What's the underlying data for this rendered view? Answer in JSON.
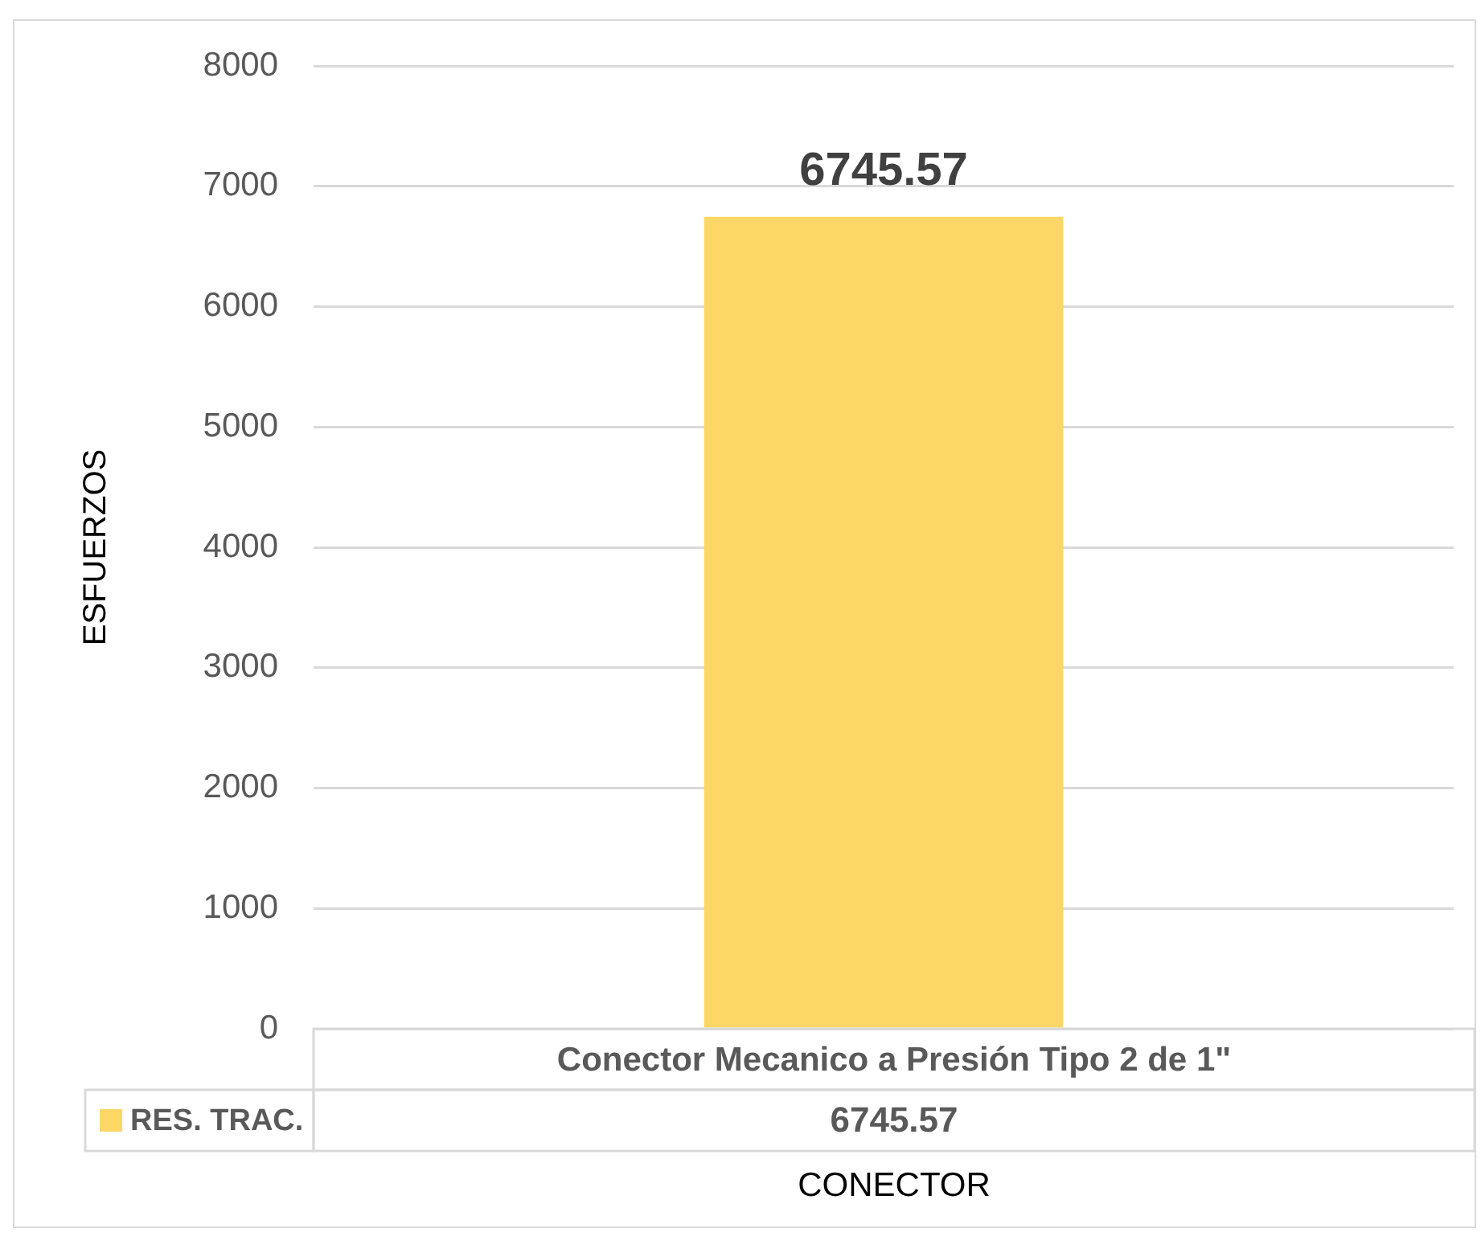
{
  "chart_data": {
    "type": "bar",
    "xlabel": "CONECTOR",
    "ylabel": "ESFUERZOS",
    "categories": [
      "Conector Mecanico a Presión Tipo 2 de 1\""
    ],
    "series": [
      {
        "name": "RES. TRAC.",
        "color": "#fdd766",
        "values": [
          6745.57
        ]
      }
    ],
    "ylim": [
      0,
      8000
    ],
    "yticks": [
      0,
      1000,
      2000,
      3000,
      4000,
      5000,
      6000,
      7000,
      8000
    ],
    "annotations": [
      "6745.57"
    ],
    "grid": "y",
    "data_labels": true,
    "legend": "bottom left"
  }
}
